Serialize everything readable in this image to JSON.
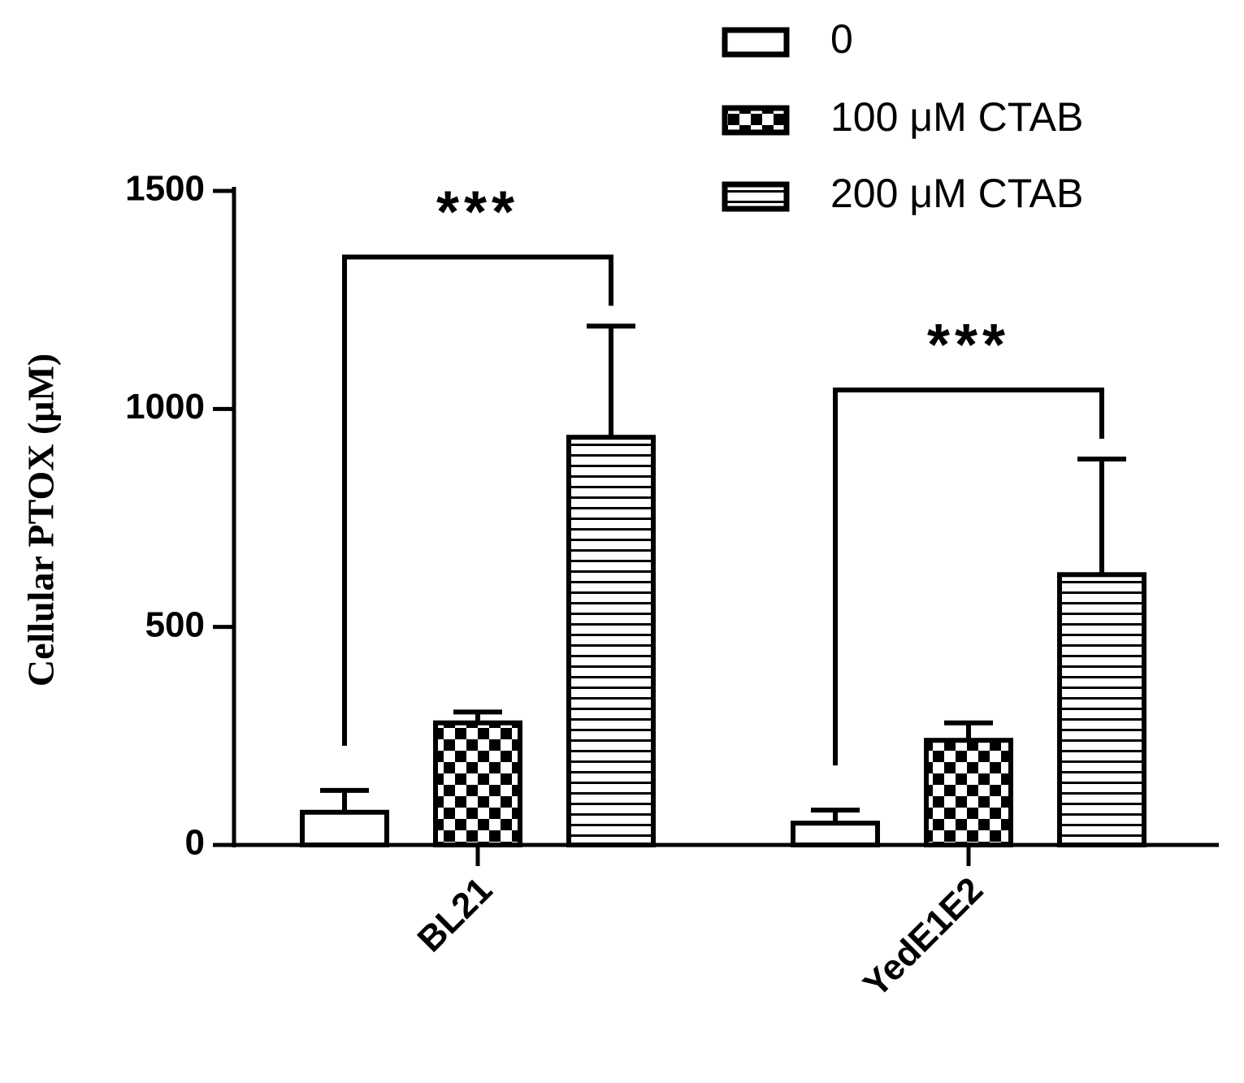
{
  "chart_data": {
    "type": "bar",
    "ylabel": "Cellular PTOX (μM)",
    "categories": [
      "BL21",
      "YedE1E2"
    ],
    "series": [
      {
        "name": "0",
        "color": "#000000",
        "pattern": "none",
        "values": [
          75,
          50
        ],
        "errors": [
          50,
          30
        ]
      },
      {
        "name": "100 μM CTAB",
        "color": "#000000",
        "pattern": "checker",
        "values": [
          280,
          240
        ],
        "errors": [
          25,
          40
        ]
      },
      {
        "name": "200 μM CTAB",
        "color": "#000000",
        "pattern": "horizontal",
        "values": [
          935,
          620
        ],
        "errors": [
          255,
          265
        ]
      }
    ],
    "annotations": [
      "***",
      "***"
    ],
    "ylim": [
      0,
      1500
    ],
    "yticks": [
      0,
      500,
      1000,
      1500
    ],
    "grid": false,
    "legend": "top-right"
  }
}
